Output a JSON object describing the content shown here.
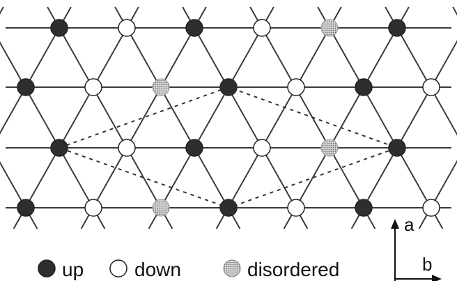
{
  "legend": [
    {
      "state": "up",
      "label": "up"
    },
    {
      "state": "down",
      "label": "down"
    },
    {
      "state": "disordered",
      "label": "disordered"
    }
  ],
  "axes": {
    "a_label": "a",
    "b_label": "b"
  },
  "lattice": {
    "type": "triangular",
    "rows": [
      [
        "up",
        "down",
        "up",
        "down",
        "disordered",
        "up"
      ],
      [
        "up",
        "down",
        "disordered",
        "up",
        "down",
        "up",
        "down"
      ],
      [
        "up",
        "down",
        "up",
        "down",
        "disordered",
        "up"
      ],
      [
        "up",
        "down",
        "disordered",
        "up",
        "down",
        "up",
        "down"
      ]
    ],
    "supercell_outline": "dotted diamond connecting row 2 site 0, row 1 site 3, row 2 site 5 and row 3 site 3"
  },
  "colors": {
    "line": "#3a3a3a",
    "up": "#2e2e2e",
    "down": "#ffffff",
    "disordered": "#9a9a9a",
    "outline": "#222222"
  }
}
